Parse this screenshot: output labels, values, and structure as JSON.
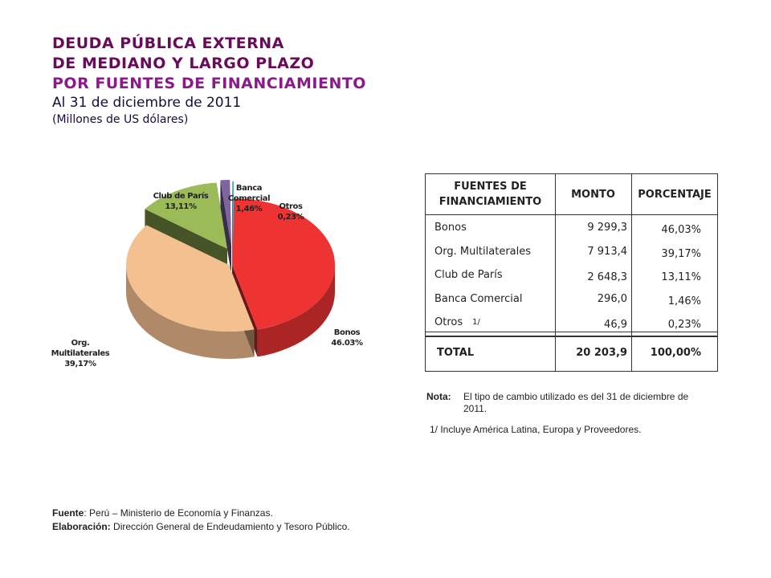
{
  "header": {
    "title_line1": "DEUDA PÚBLICA EXTERNA",
    "title_line2": "DE MEDIANO Y LARGO PLAZO",
    "title_line3": "POR FUENTES DE FINANCIAMIENTO",
    "date": "Al 31 de diciembre de 2011",
    "units": "(Millones de US dólares)"
  },
  "colors": {
    "bonos": "#ee3333",
    "multilaterales": "#f5c090",
    "club_paris": "#9bbb59",
    "banca_comercial": "#8064a2",
    "otros": "#4bacc6"
  },
  "chart_data": {
    "type": "pie",
    "title": "DEUDA PÚBLICA EXTERNA DE MEDIANO Y LARGO PLAZO POR FUENTES DE FINANCIAMIENTO",
    "labels": [
      "Bonos",
      "Org. Multilaterales",
      "Club de París",
      "Banca Comercial",
      "Otros"
    ],
    "label_lines": [
      [
        "Bonos"
      ],
      [
        "Org.",
        "Multilaterales"
      ],
      [
        "Club de París"
      ],
      [
        "Banca",
        "Comercial"
      ],
      [
        "Otros"
      ]
    ],
    "percent_labels": [
      "46.03%",
      "39,17%",
      "13,11%",
      "1,46%",
      "0,23%"
    ],
    "values": [
      46.03,
      39.17,
      13.11,
      1.46,
      0.23
    ]
  },
  "table": {
    "headers": {
      "source_line1": "FUENTES DE",
      "source_line2": "FINANCIAMIENTO",
      "amount": "MONTO",
      "percent": "PORCENTAJE"
    },
    "rows": [
      {
        "source": "Bonos",
        "amount": "9 299,3",
        "percent": "46,03%"
      },
      {
        "source": "Org. Multilaterales",
        "amount": "7 913,4",
        "percent": "39,17%"
      },
      {
        "source": "Club de París",
        "amount": "2 648,3",
        "percent": "13,11%"
      },
      {
        "source": "Banca Comercial",
        "amount": "296,0",
        "percent": "1,46%"
      },
      {
        "source": "Otros",
        "footnote_ref": "1/",
        "amount": "46,9",
        "percent": "0,23%"
      }
    ],
    "total": {
      "label": "TOTAL",
      "amount": "20 203,9",
      "percent": "100,00%"
    }
  },
  "notes": {
    "note_label": "Nota:",
    "note_text": "El tipo de cambio utilizado es del 31 de diciembre de 2011.",
    "footnote": "1/  Incluye América Latina, Europa y Proveedores."
  },
  "source": {
    "fuente_label": "Fuente",
    "fuente_text": ": Perú – Ministerio de Economía y Finanzas.",
    "elaboracion_label": "Elaboración:",
    "elaboracion_text": "  Dirección  General de Endeudamiento y Tesoro Público."
  }
}
